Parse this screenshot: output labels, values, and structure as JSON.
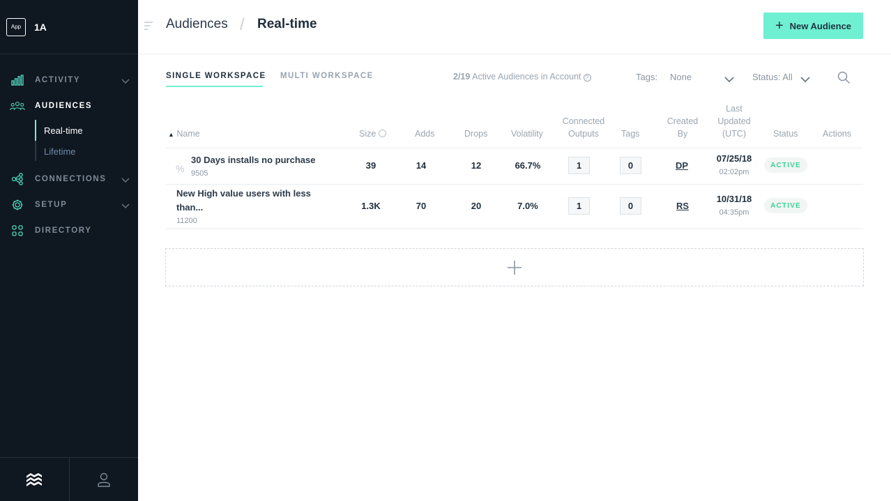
{
  "brand": {
    "app_badge": "App",
    "name": "1A"
  },
  "nav": {
    "items": [
      {
        "label": "ACTIVITY"
      },
      {
        "label": "AUDIENCES"
      },
      {
        "label": "CONNECTIONS"
      },
      {
        "label": "SETUP"
      },
      {
        "label": "DIRECTORY"
      }
    ],
    "sub_items": [
      {
        "label": "Real-time"
      },
      {
        "label": "Lifetime"
      }
    ]
  },
  "header": {
    "crumb_parent": "Audiences",
    "crumb_current": "Real-time",
    "new_button": "New Audience"
  },
  "toolbar": {
    "tabs": [
      {
        "label": "SINGLE WORKSPACE"
      },
      {
        "label": "MULTI WORKSPACE"
      }
    ],
    "count_value": "2/19",
    "count_label": "Active Audiences in Account",
    "tags_label": "Tags:",
    "tags_value": "None",
    "status_filter": "Status: All"
  },
  "table": {
    "headers": {
      "name": "Name",
      "size": "Size",
      "adds": "Adds",
      "drops": "Drops",
      "volatility": "Volatility",
      "outputs_1": "Connected",
      "outputs_2": "Outputs",
      "tags": "Tags",
      "created_1": "Created",
      "created_2": "By",
      "updated_1": "Last",
      "updated_2": "Updated",
      "updated_3": "(UTC)",
      "status": "Status",
      "actions": "Actions"
    },
    "rows": [
      {
        "name": "30 Days installs no purchase",
        "id": "9505",
        "size": "39",
        "adds": "14",
        "drops": "12",
        "volatility": "66.7%",
        "outputs": "1",
        "tags": "0",
        "created_by": "DP",
        "date": "07/25/18",
        "time": "02:02pm",
        "status": "ACTIVE"
      },
      {
        "name_line1": "New High value users with less",
        "name_line2": "than...",
        "id": "11200",
        "size": "1.3K",
        "adds": "70",
        "drops": "20",
        "volatility": "7.0%",
        "outputs": "1",
        "tags": "0",
        "created_by": "RS",
        "date": "10/31/18",
        "time": "04:35pm",
        "status": "ACTIVE"
      }
    ]
  },
  "colors": {
    "sidebar_bg": "#0f1720",
    "accent": "#6ff0d2",
    "active_status": "#36d39b"
  }
}
